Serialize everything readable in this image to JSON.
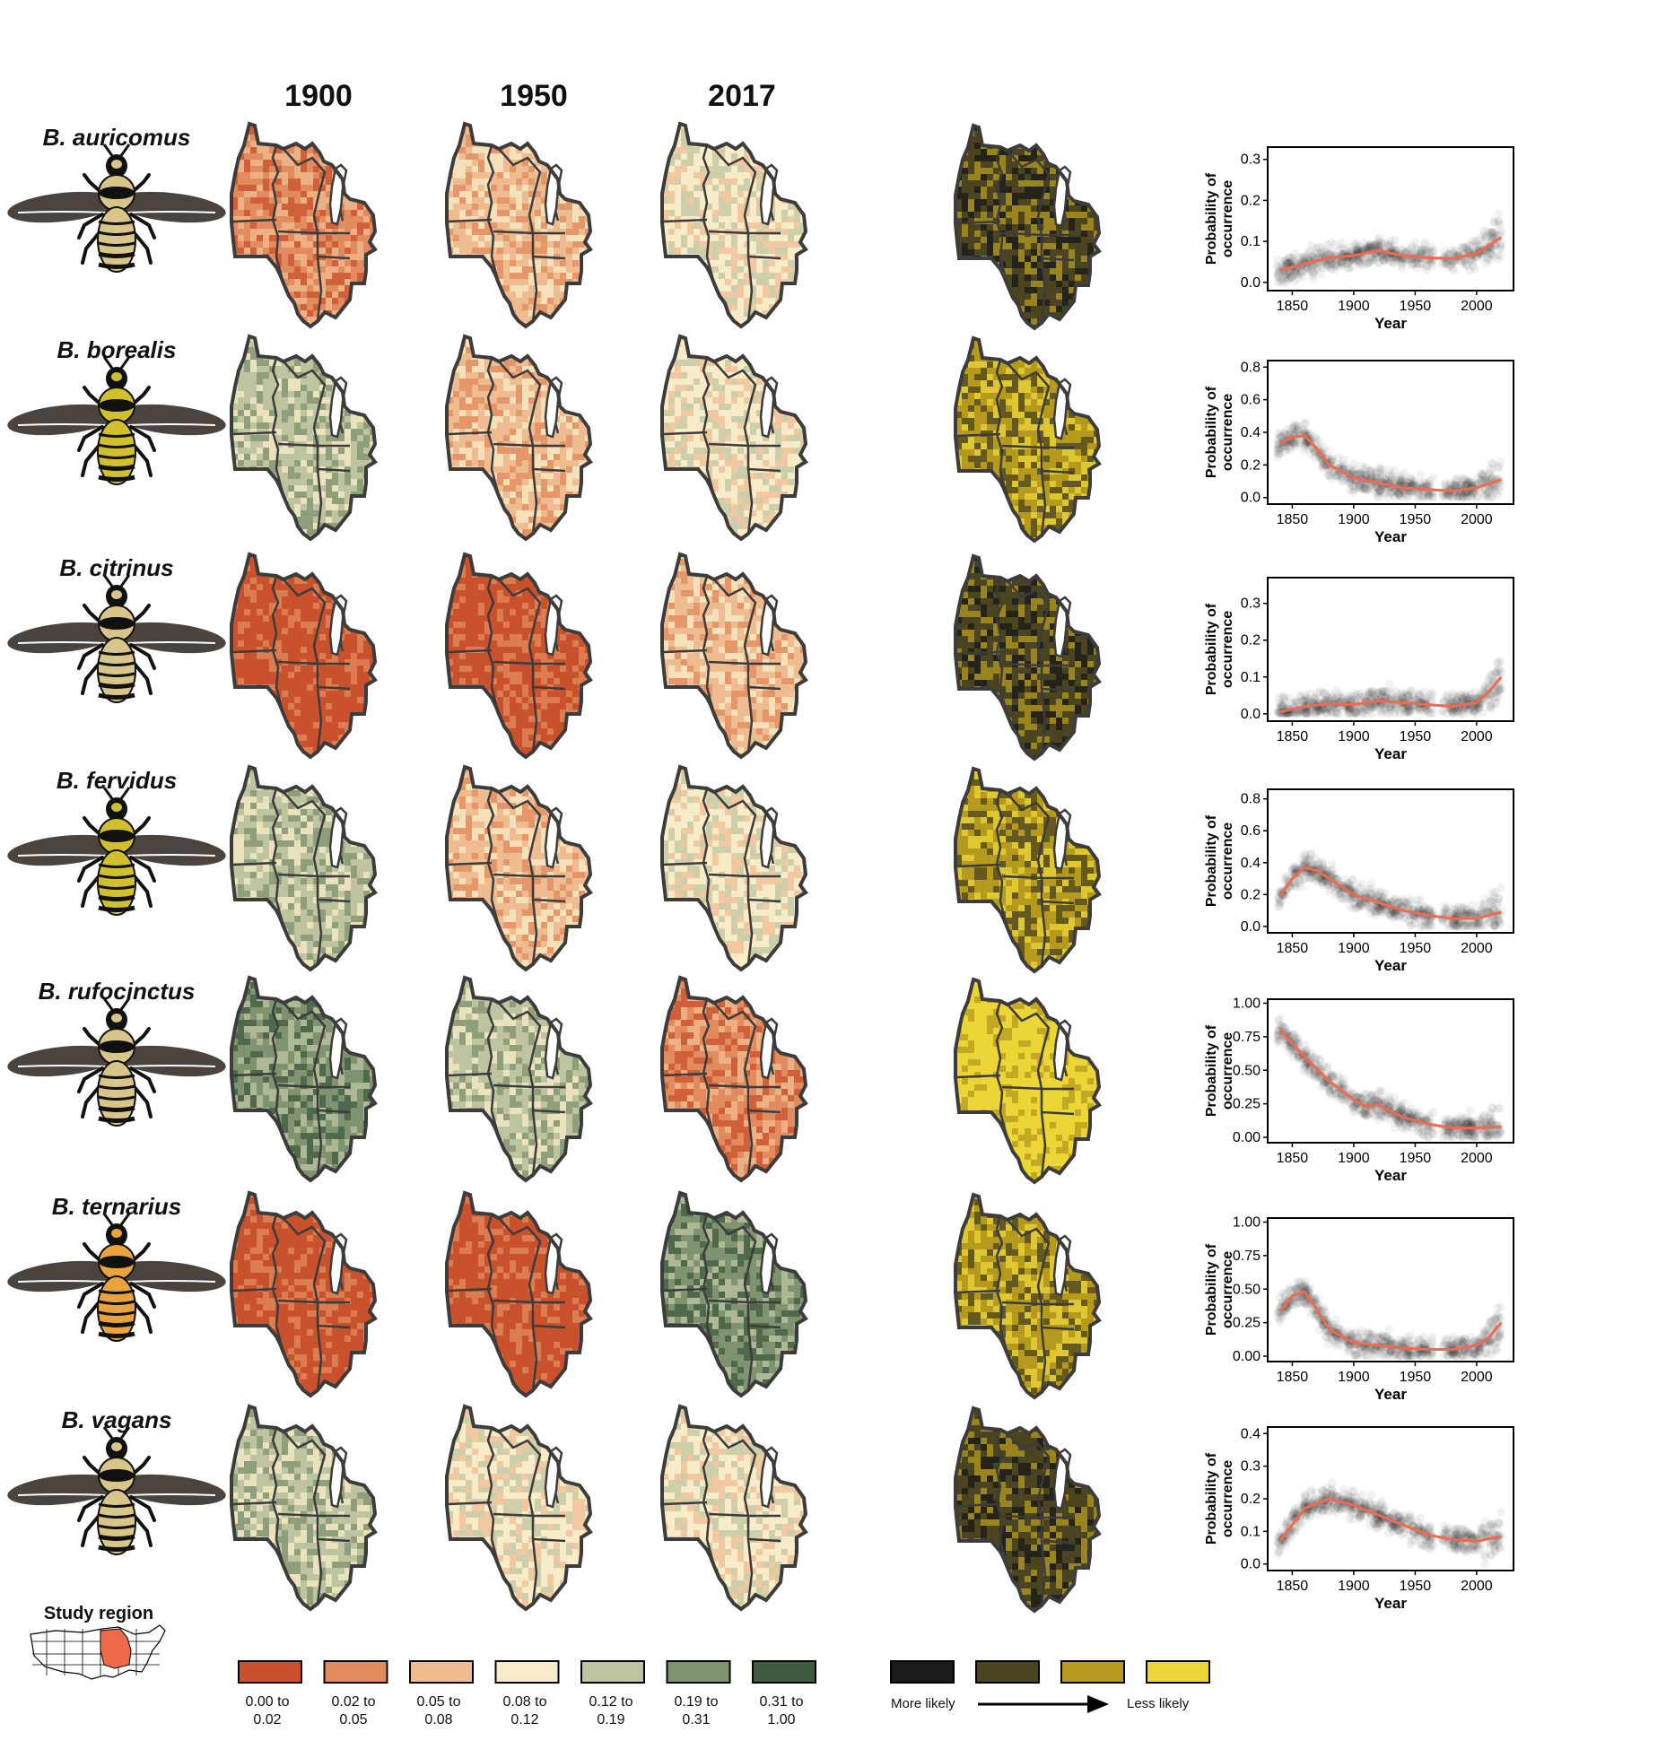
{
  "header": {
    "years": [
      "1900",
      "1950",
      "2017"
    ]
  },
  "colors": {
    "occurrence_bins": [
      "#c9522d",
      "#e18b5e",
      "#efbc91",
      "#f7ecc7",
      "#bfc4a0",
      "#7f9370",
      "#3e5b3f"
    ],
    "change_bins": [
      "#1a1a1a",
      "#4a4420",
      "#b59a1e",
      "#ecd537"
    ],
    "trend_line": "#f06a4f",
    "study_region_highlight": "#ee6a4b"
  },
  "species": [
    {
      "name": "B. auricomus",
      "map_bins": [
        1,
        2,
        3
      ],
      "change_bin": 1,
      "body_color": "#d8c58a"
    },
    {
      "name": "B. borealis",
      "map_bins": [
        4,
        2,
        3
      ],
      "change_bin": 2,
      "body_color": "#d1c02e"
    },
    {
      "name": "B. citrinus",
      "map_bins": [
        0,
        0,
        2
      ],
      "change_bin": 1,
      "body_color": "#d8c58a"
    },
    {
      "name": "B. fervidus",
      "map_bins": [
        4,
        2,
        3
      ],
      "change_bin": 2,
      "body_color": "#d1c02e"
    },
    {
      "name": "B. rufocinctus",
      "map_bins": [
        5,
        4,
        1
      ],
      "change_bin": 3,
      "body_color": "#d8c58a"
    },
    {
      "name": "B. ternarius",
      "map_bins": [
        0,
        0,
        5
      ],
      "change_bin": 2,
      "body_color": "#e8a33c"
    },
    {
      "name": "B. vagans",
      "map_bins": [
        4,
        3,
        3
      ],
      "change_bin": 1,
      "body_color": "#d8c58a"
    }
  ],
  "study_region": {
    "label": "Study region"
  },
  "occurrence_legend": {
    "labels": [
      "0.00 to\n0.02",
      "0.02 to\n0.05",
      "0.05 to\n0.08",
      "0.08 to\n0.12",
      "0.12 to\n0.19",
      "0.19 to\n0.31",
      "0.31 to\n1.00"
    ]
  },
  "change_legend": {
    "left": "More likely",
    "right": "Less likely"
  },
  "chart_data": [
    {
      "type": "scatter",
      "species": "B. auricomus",
      "xlabel": "Year",
      "ylabel": "Probability of\noccurrence",
      "xlim": [
        1830,
        2030
      ],
      "ylim": [
        -0.02,
        0.33
      ],
      "xticks": [
        1850,
        1900,
        1950,
        2000
      ],
      "yticks": [
        0.0,
        0.1,
        0.2,
        0.3
      ],
      "ytick_labels": [
        "0.0",
        "0.1",
        "0.2",
        "0.3"
      ],
      "point_gap": [
        1965,
        1972
      ],
      "trend": {
        "x": [
          1840,
          1860,
          1880,
          1900,
          1920,
          1940,
          1960,
          1980,
          2000,
          2020
        ],
        "y": [
          0.03,
          0.045,
          0.06,
          0.065,
          0.078,
          0.065,
          0.06,
          0.058,
          0.07,
          0.11
        ]
      }
    },
    {
      "type": "scatter",
      "species": "B. borealis",
      "xlabel": "Year",
      "ylabel": "Probability of\noccurrence",
      "xlim": [
        1830,
        2030
      ],
      "ylim": [
        -0.04,
        0.84
      ],
      "xticks": [
        1850,
        1900,
        1950,
        2000
      ],
      "yticks": [
        0.0,
        0.2,
        0.4,
        0.6,
        0.8
      ],
      "ytick_labels": [
        "0.0",
        "0.2",
        "0.4",
        "0.6",
        "0.8"
      ],
      "point_gap": [
        1965,
        1972
      ],
      "trend": {
        "x": [
          1840,
          1850,
          1860,
          1870,
          1880,
          1900,
          1920,
          1940,
          1960,
          1980,
          2000,
          2020
        ],
        "y": [
          0.33,
          0.37,
          0.38,
          0.3,
          0.2,
          0.12,
          0.09,
          0.06,
          0.05,
          0.04,
          0.06,
          0.11
        ]
      }
    },
    {
      "type": "scatter",
      "species": "B. citrinus",
      "xlabel": "Year",
      "ylabel": "Probability of\noccurrence",
      "xlim": [
        1830,
        2030
      ],
      "ylim": [
        -0.02,
        0.37
      ],
      "xticks": [
        1850,
        1900,
        1950,
        2000
      ],
      "yticks": [
        0.0,
        0.1,
        0.2,
        0.3
      ],
      "ytick_labels": [
        "0.0",
        "0.1",
        "0.2",
        "0.3"
      ],
      "point_gap": [
        1965,
        1972
      ],
      "trend": {
        "x": [
          1840,
          1860,
          1880,
          1900,
          1920,
          1940,
          1960,
          1980,
          2000,
          2010,
          2020
        ],
        "y": [
          0.005,
          0.02,
          0.027,
          0.025,
          0.035,
          0.03,
          0.025,
          0.02,
          0.03,
          0.06,
          0.1
        ]
      }
    },
    {
      "type": "scatter",
      "species": "B. fervidus",
      "xlabel": "Year",
      "ylabel": "Probability of\noccurrence",
      "xlim": [
        1830,
        2030
      ],
      "ylim": [
        -0.04,
        0.86
      ],
      "xticks": [
        1850,
        1900,
        1950,
        2000
      ],
      "yticks": [
        0.0,
        0.2,
        0.4,
        0.6,
        0.8
      ],
      "ytick_labels": [
        "0.0",
        "0.2",
        "0.4",
        "0.6",
        "0.8"
      ],
      "point_gap": [
        1965,
        1972
      ],
      "trend": {
        "x": [
          1840,
          1850,
          1860,
          1870,
          1880,
          1900,
          1920,
          1940,
          1960,
          1980,
          2000,
          2020
        ],
        "y": [
          0.19,
          0.3,
          0.37,
          0.35,
          0.3,
          0.2,
          0.15,
          0.1,
          0.07,
          0.05,
          0.05,
          0.09
        ]
      }
    },
    {
      "type": "scatter",
      "species": "B. rufocinctus",
      "xlabel": "Year",
      "ylabel": "Probability of\noccurrence",
      "xlim": [
        1830,
        2030
      ],
      "ylim": [
        -0.04,
        1.03
      ],
      "xticks": [
        1850,
        1900,
        1950,
        2000
      ],
      "yticks": [
        0.0,
        0.25,
        0.5,
        0.75,
        1.0
      ],
      "ytick_labels": [
        "0.00",
        "0.25",
        "0.50",
        "0.75",
        "1.00"
      ],
      "point_gap": [
        1965,
        1972
      ],
      "trend": {
        "x": [
          1840,
          1860,
          1880,
          1900,
          1910,
          1920,
          1940,
          1960,
          1980,
          2000,
          2020
        ],
        "y": [
          0.8,
          0.6,
          0.42,
          0.28,
          0.23,
          0.24,
          0.15,
          0.1,
          0.07,
          0.07,
          0.08
        ]
      }
    },
    {
      "type": "scatter",
      "species": "B. ternarius",
      "xlabel": "Year",
      "ylabel": "Probability of\noccurrence",
      "xlim": [
        1830,
        2030
      ],
      "ylim": [
        -0.04,
        1.03
      ],
      "xticks": [
        1850,
        1900,
        1950,
        2000
      ],
      "yticks": [
        0.0,
        0.25,
        0.5,
        0.75,
        1.0
      ],
      "ytick_labels": [
        "0.00",
        "0.25",
        "0.50",
        "0.75",
        "1.00"
      ],
      "point_gap": [
        1965,
        1972
      ],
      "trend": {
        "x": [
          1840,
          1850,
          1860,
          1870,
          1880,
          1900,
          1920,
          1940,
          1960,
          1980,
          2000,
          2010,
          2020
        ],
        "y": [
          0.33,
          0.45,
          0.48,
          0.35,
          0.2,
          0.1,
          0.08,
          0.06,
          0.05,
          0.05,
          0.08,
          0.14,
          0.25
        ]
      }
    },
    {
      "type": "scatter",
      "species": "B. vagans",
      "xlabel": "Year",
      "ylabel": "Probability of\noccurrence",
      "xlim": [
        1830,
        2030
      ],
      "ylim": [
        -0.02,
        0.42
      ],
      "xticks": [
        1850,
        1900,
        1950,
        2000
      ],
      "yticks": [
        0.0,
        0.1,
        0.2,
        0.3,
        0.4
      ],
      "ytick_labels": [
        "0.0",
        "0.1",
        "0.2",
        "0.3",
        "0.4"
      ],
      "point_gap": [
        1965,
        1972
      ],
      "trend": {
        "x": [
          1840,
          1860,
          1880,
          1900,
          1920,
          1940,
          1960,
          1980,
          2000,
          2020
        ],
        "y": [
          0.07,
          0.17,
          0.2,
          0.18,
          0.15,
          0.12,
          0.09,
          0.075,
          0.07,
          0.085
        ]
      }
    }
  ]
}
